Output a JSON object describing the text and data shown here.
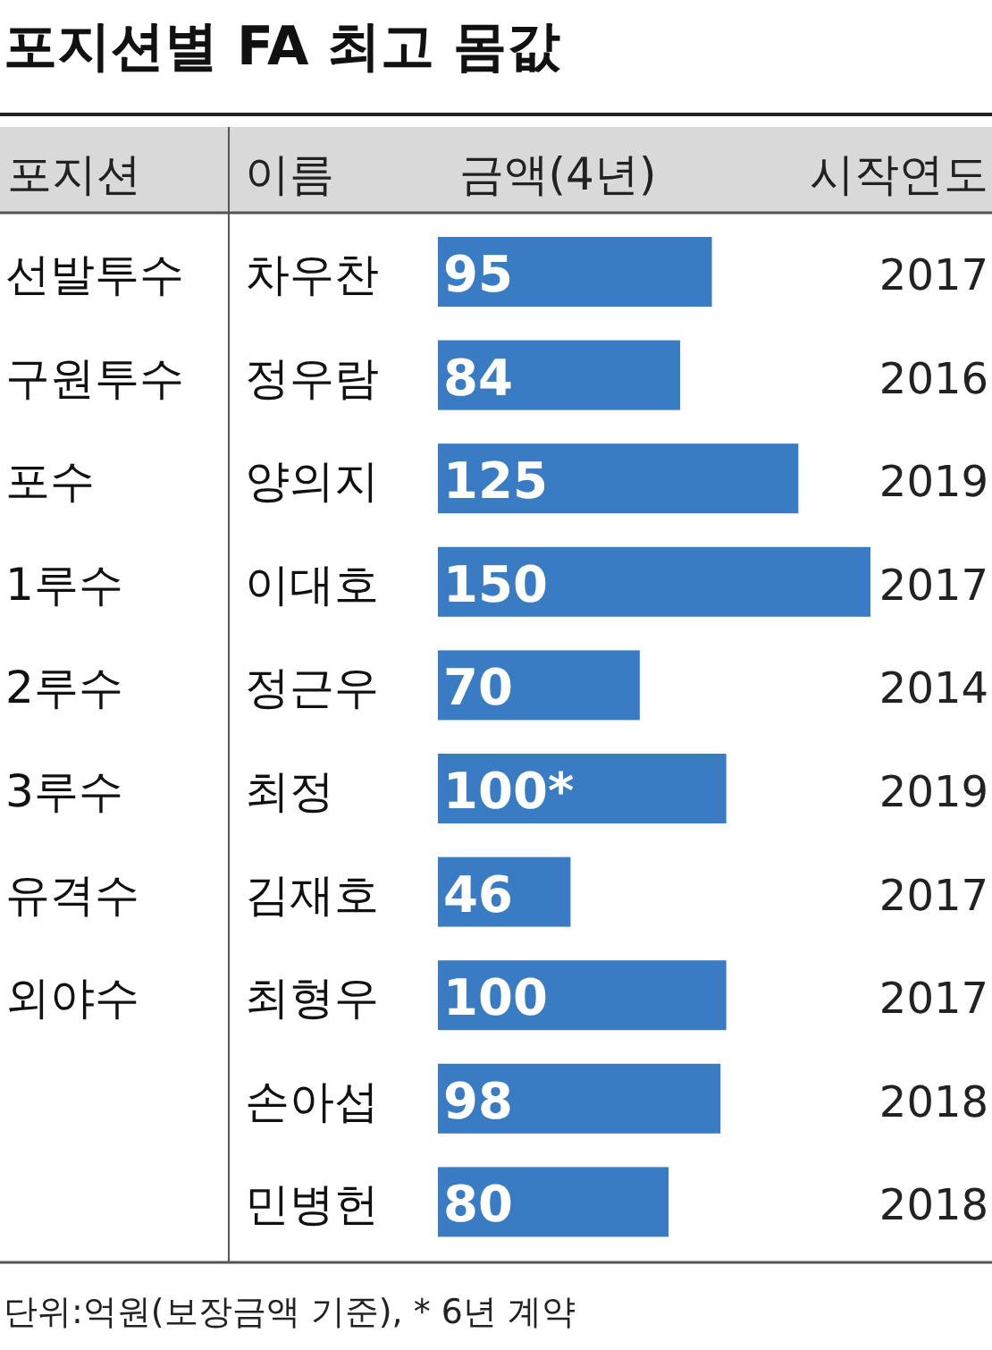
{
  "chart_data": {
    "type": "bar",
    "orientation": "horizontal",
    "title": "포지션별 FA 최고 몸값",
    "categories": [
      "차우찬",
      "정우람",
      "양의지",
      "이대호",
      "정근우",
      "최정",
      "김재호",
      "최형우",
      "손아섭",
      "민병헌"
    ],
    "values": [
      95,
      84,
      125,
      150,
      70,
      100,
      46,
      100,
      98,
      80
    ],
    "value_labels": [
      "95",
      "84",
      "125",
      "150",
      "70",
      "100*",
      "46",
      "100",
      "98",
      "80"
    ],
    "color": "#3a7cc4",
    "annotations": [
      "포지션",
      "이름",
      "금액(4년)",
      "시작연도",
      "단위:억원(보장금액 기준), * 6년 계약",
      "선발투수",
      "구원투수",
      "포수",
      "1루수",
      "2루수",
      "3루수",
      "유격수",
      "외야수",
      "2017",
      "2016",
      "2019",
      "2017",
      "2014",
      "2019",
      "2017",
      "2017",
      "2018",
      "2018"
    ]
  }
}
